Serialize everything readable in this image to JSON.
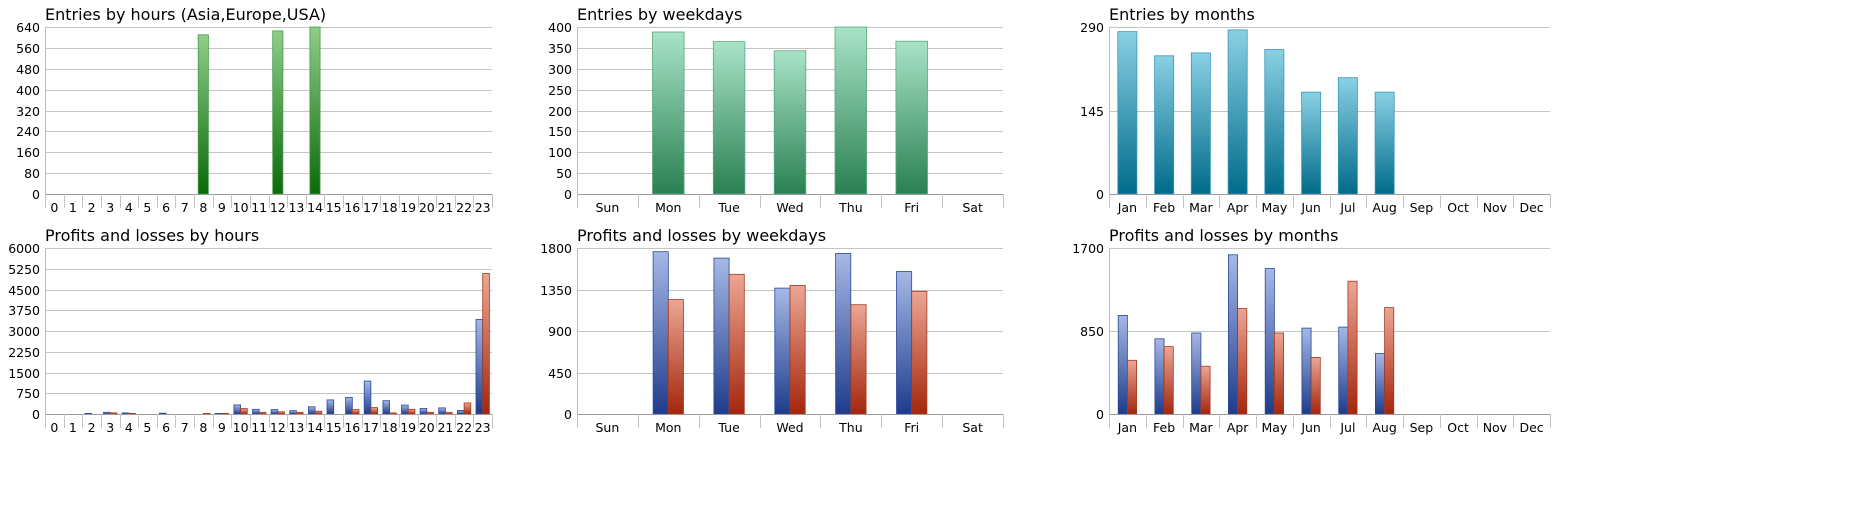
{
  "chart_data": [
    {
      "id": "entries-hours",
      "type": "bar",
      "title": "Entries by hours (Asia,Europe,USA)",
      "categories": [
        "0",
        "1",
        "2",
        "3",
        "4",
        "5",
        "6",
        "7",
        "8",
        "9",
        "10",
        "11",
        "12",
        "13",
        "14",
        "15",
        "16",
        "17",
        "18",
        "19",
        "20",
        "21",
        "22",
        "23"
      ],
      "series": [
        {
          "values": [
            0,
            0,
            0,
            0,
            0,
            0,
            0,
            0,
            610,
            0,
            0,
            0,
            625,
            0,
            640,
            0,
            0,
            0,
            0,
            0,
            0,
            0,
            0,
            0
          ],
          "color": "green"
        }
      ],
      "yticks": [
        0,
        80,
        160,
        240,
        320,
        400,
        480,
        560,
        640
      ],
      "ylim": [
        0,
        640
      ]
    },
    {
      "id": "entries-weekdays",
      "type": "bar",
      "title": "Entries by weekdays",
      "categories": [
        "Sun",
        "Mon",
        "Tue",
        "Wed",
        "Thu",
        "Fri",
        "Sat"
      ],
      "series": [
        {
          "values": [
            0,
            388,
            365,
            343,
            400,
            366,
            0
          ],
          "color": "mint"
        }
      ],
      "yticks": [
        0,
        50,
        100,
        150,
        200,
        250,
        300,
        350,
        400
      ],
      "ylim": [
        0,
        400
      ]
    },
    {
      "id": "entries-months",
      "type": "bar",
      "title": "Entries by months",
      "categories": [
        "Jan",
        "Feb",
        "Mar",
        "Apr",
        "May",
        "Jun",
        "Jul",
        "Aug",
        "Sep",
        "Oct",
        "Nov",
        "Dec"
      ],
      "series": [
        {
          "values": [
            282,
            240,
            245,
            285,
            251,
            177,
            202,
            177,
            0,
            0,
            0,
            0
          ],
          "color": "teal"
        }
      ],
      "yticks": [
        0,
        145,
        290
      ],
      "ylim": [
        0,
        290
      ]
    },
    {
      "id": "pl-hours",
      "type": "bar",
      "title": "Profits and losses by hours",
      "categories": [
        "0",
        "1",
        "2",
        "3",
        "4",
        "5",
        "6",
        "7",
        "8",
        "9",
        "10",
        "11",
        "12",
        "13",
        "14",
        "15",
        "16",
        "17",
        "18",
        "19",
        "20",
        "21",
        "22",
        "23"
      ],
      "series": [
        {
          "values": [
            0,
            0,
            20,
            60,
            40,
            0,
            30,
            0,
            0,
            20,
            330,
            170,
            160,
            120,
            260,
            510,
            600,
            1190,
            480,
            320,
            200,
            220,
            130,
            3420
          ],
          "color": "blue"
        },
        {
          "values": [
            0,
            0,
            0,
            40,
            20,
            0,
            0,
            0,
            20,
            20,
            200,
            60,
            80,
            60,
            100,
            0,
            160,
            230,
            40,
            170,
            60,
            60,
            400,
            5080
          ],
          "color": "red"
        }
      ],
      "yticks": [
        0,
        750,
        1500,
        2250,
        3000,
        3750,
        4500,
        5250,
        6000
      ],
      "ylim": [
        0,
        6000
      ]
    },
    {
      "id": "pl-weekdays",
      "type": "bar",
      "title": "Profits and losses by weekdays",
      "categories": [
        "Sun",
        "Mon",
        "Tue",
        "Wed",
        "Thu",
        "Fri",
        "Sat"
      ],
      "series": [
        {
          "values": [
            0,
            1760,
            1690,
            1365,
            1740,
            1545,
            0
          ],
          "color": "blue"
        },
        {
          "values": [
            0,
            1240,
            1515,
            1395,
            1185,
            1330,
            0
          ],
          "color": "red"
        }
      ],
      "yticks": [
        0,
        450,
        900,
        1350,
        1800
      ],
      "ylim": [
        0,
        1800
      ]
    },
    {
      "id": "pl-months",
      "type": "bar",
      "title": "Profits and losses by months",
      "categories": [
        "Jan",
        "Feb",
        "Mar",
        "Apr",
        "May",
        "Jun",
        "Jul",
        "Aug",
        "Sep",
        "Oct",
        "Nov",
        "Dec"
      ],
      "series": [
        {
          "values": [
            1010,
            770,
            830,
            1630,
            1490,
            880,
            890,
            620,
            0,
            0,
            0,
            0
          ],
          "color": "blue"
        },
        {
          "values": [
            550,
            690,
            490,
            1080,
            830,
            580,
            1360,
            1090,
            0,
            0,
            0,
            0
          ],
          "color": "red"
        }
      ],
      "yticks": [
        0,
        850,
        1700
      ],
      "ylim": [
        0,
        1700
      ]
    }
  ]
}
